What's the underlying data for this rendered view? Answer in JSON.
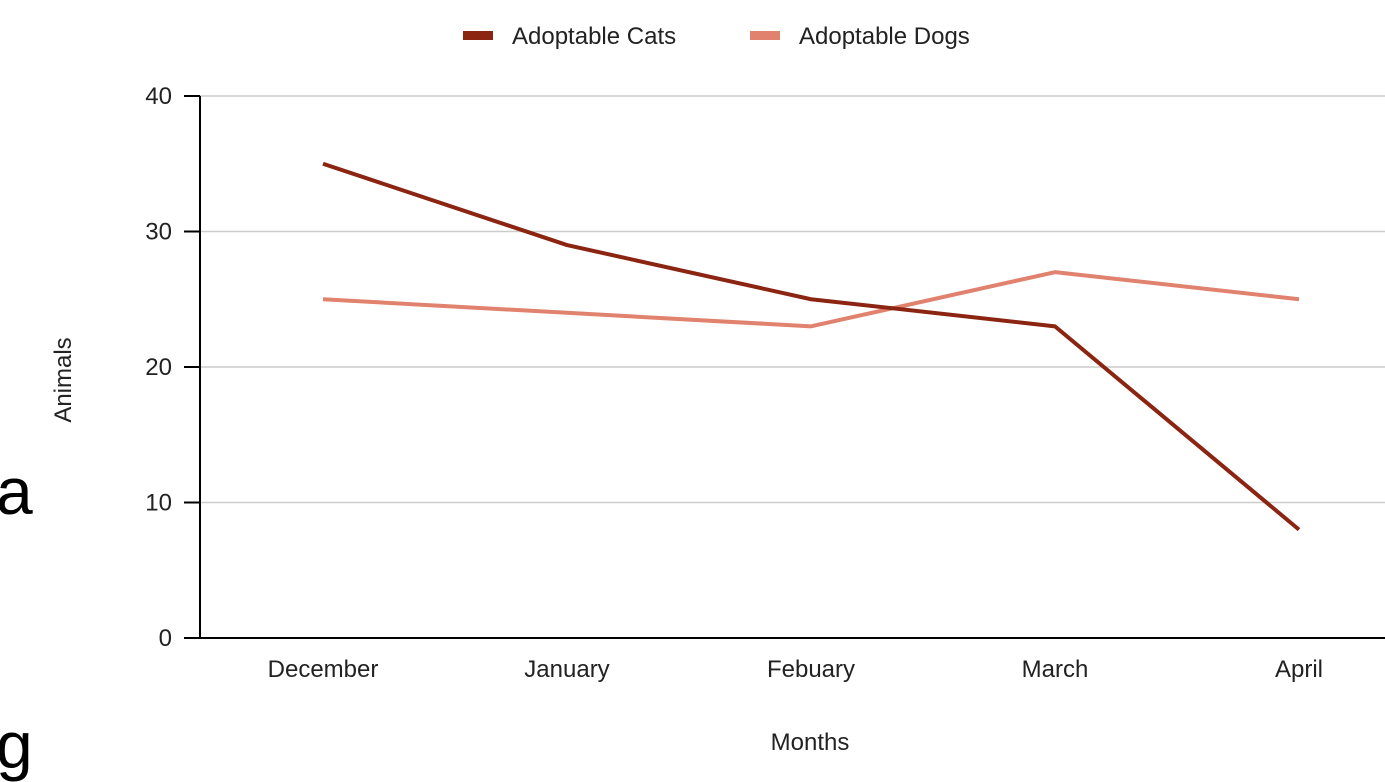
{
  "edge_fragments": [
    "a",
    "g"
  ],
  "chart_data": {
    "type": "line",
    "title": "",
    "xlabel": "Months",
    "ylabel": "Animals",
    "categories": [
      "December",
      "January",
      "Febuary",
      "March",
      "April"
    ],
    "series": [
      {
        "name": "Adoptable Cats",
        "values": [
          35,
          29,
          25,
          23,
          8
        ],
        "color": "#8b2512"
      },
      {
        "name": "Adoptable Dogs",
        "values": [
          25,
          24,
          23,
          27,
          25
        ],
        "color": "#e0826e"
      }
    ],
    "ylim": [
      0,
      40
    ],
    "yticks": [
      0,
      10,
      20,
      30,
      40
    ],
    "grid": true,
    "legend_position": "top-center",
    "colors": {
      "gridline": "#cccccc",
      "axis": "#000000",
      "text": "#222222"
    }
  }
}
